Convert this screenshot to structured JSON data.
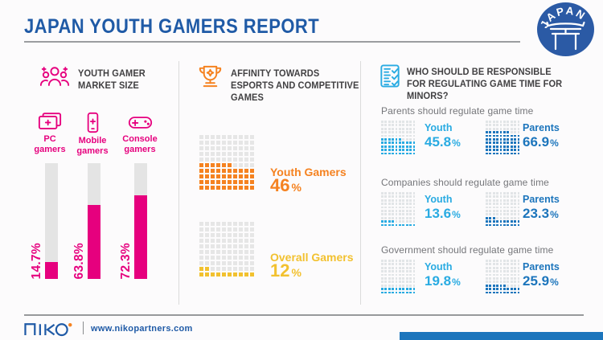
{
  "header": {
    "title": "JAPAN YOUTH GAMERS REPORT",
    "badge_label": "JAPAN"
  },
  "panels": {
    "market": {
      "title": "YOUTH GAMER MARKET SIZE",
      "icon": "people-group-icon",
      "accent_color": "#E6007E",
      "track_color": "#E4E4E4",
      "categories": [
        {
          "label": "PC gamers",
          "line1": "PC",
          "line2": "gamers",
          "icon": "pc-icon",
          "value_label": "14.7%",
          "pct": 14.7
        },
        {
          "label": "Mobile gamers",
          "line1": "Mobile",
          "line2": "gamers",
          "icon": "mobile-icon",
          "value_label": "63.8%",
          "pct": 63.8
        },
        {
          "label": "Console gamers",
          "line1": "Console",
          "line2": "gamers",
          "icon": "controller-icon",
          "value_label": "72.3%",
          "pct": 72.3
        }
      ]
    },
    "affinity": {
      "title": "AFFINITY TOWARDS ESPORTS AND COMPETITIVE GAMES",
      "icon": "trophy-icon",
      "empty_color": "#E6E6E6",
      "waffles": [
        {
          "label": "Youth Gamers",
          "value": "46",
          "unit": "%",
          "pct": 46,
          "color": "#F58220"
        },
        {
          "label": "Overall Gamers",
          "value": "12",
          "unit": "%",
          "pct": 12,
          "color": "#F2C12F"
        }
      ]
    },
    "regulation": {
      "title": "WHO SHOULD BE RESPONSIBLE FOR REGULATING GAME TIME FOR MINORS?",
      "icon": "checklist-icon",
      "youth_color": "#29ABE2",
      "parents_color": "#1C75BC",
      "empty_color": "#E2E5E7",
      "sections": [
        {
          "subtitle": "Parents should regulate game time",
          "items": [
            {
              "group": "Youth",
              "value": "45.8",
              "unit": "%",
              "pct": 45.8
            },
            {
              "group": "Parents",
              "value": "66.9",
              "unit": "%",
              "pct": 66.9
            }
          ]
        },
        {
          "subtitle": "Companies should regulate game time",
          "items": [
            {
              "group": "Youth",
              "value": "13.6",
              "unit": "%",
              "pct": 13.6
            },
            {
              "group": "Parents",
              "value": "23.3",
              "unit": "%",
              "pct": 23.3
            }
          ]
        },
        {
          "subtitle": "Government should regulate game time",
          "items": [
            {
              "group": "Youth",
              "value": "19.8",
              "unit": "%",
              "pct": 19.8
            },
            {
              "group": "Parents",
              "value": "25.9",
              "unit": "%",
              "pct": 25.9
            }
          ]
        }
      ]
    }
  },
  "footer": {
    "logo": "niko",
    "url": "www.nikopartners.com"
  },
  "colors": {
    "brand_blue": "#1F5AA6",
    "badge_blue": "#2B5AA5",
    "magenta": "#E6007E",
    "orange": "#F58220",
    "yellow": "#F2C12F",
    "cyan": "#29ABE2",
    "dark_blue": "#1C75BC",
    "text_dark": "#414042",
    "text_gray": "#75767A",
    "waffle_empty": "#E6E6E6",
    "bottom_bar_blue": "#1C75BC"
  },
  "chart_data": [
    {
      "type": "bar",
      "title": "Youth Gamer Market Size",
      "categories": [
        "PC gamers",
        "Mobile gamers",
        "Console gamers"
      ],
      "values": [
        14.7,
        63.8,
        72.3
      ],
      "unit": "%",
      "ylim": [
        0,
        100
      ],
      "value_labels": [
        "14.7%",
        "63.8%",
        "72.3%"
      ],
      "bar_color": "#E6007E",
      "track_color": "#E4E4E4",
      "grid": false,
      "legend": false
    },
    {
      "type": "bar",
      "style": "waffle-100-grid",
      "title": "Affinity Towards Esports and Competitive Games",
      "categories": [
        "Youth Gamers",
        "Overall Gamers"
      ],
      "values": [
        46,
        12
      ],
      "unit": "%",
      "ylim": [
        0,
        100
      ],
      "colors": [
        "#F58220",
        "#F2C12F"
      ],
      "grid": false,
      "legend": false
    },
    {
      "type": "bar",
      "style": "waffle-100-grid-pairs",
      "title": "Who should be responsible for regulating game time for minors?",
      "categories": [
        "Parents should regulate game time",
        "Companies should regulate game time",
        "Government should regulate game time"
      ],
      "series": [
        {
          "name": "Youth",
          "values": [
            45.8,
            13.6,
            19.8
          ],
          "color": "#29ABE2"
        },
        {
          "name": "Parents",
          "values": [
            66.9,
            23.3,
            25.9
          ],
          "color": "#1C75BC"
        }
      ],
      "unit": "%",
      "ylim": [
        0,
        100
      ],
      "grid": false,
      "legend": false
    }
  ]
}
